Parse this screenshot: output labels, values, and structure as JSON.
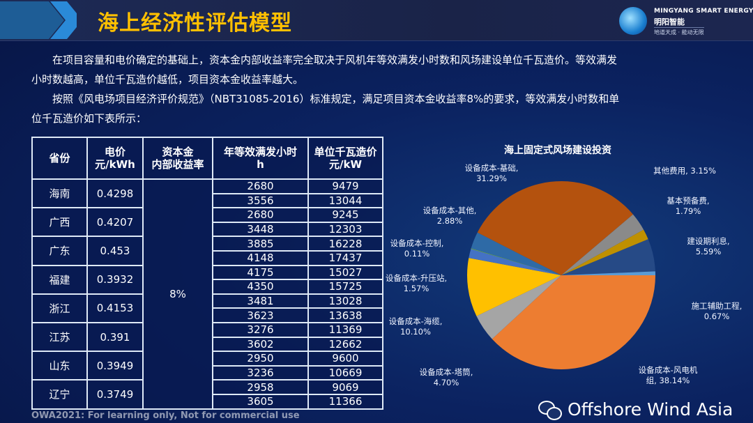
{
  "header": {
    "title": "海上经济性评估模型",
    "logo": {
      "en": "MINGYANG SMART ENERGY",
      "cn": "明阳智能",
      "slogan": "地道天成 · 能动无限"
    }
  },
  "intro": {
    "p1": "在项目容量和电价确定的基础上，资本金内部收益率完全取决于风机年等效满发小时数和风场建设单位千瓦造价。等效满发小时数越高，单位千瓦造价越低，项目资本金收益率越大。",
    "p2": "按照《风电场项目经济评价规范》（NBT31085-2016）标准规定，满足项目资本金收益率8%的要求，等效满发小时数和单位千瓦造价如下表所示："
  },
  "table": {
    "headers": [
      "省份",
      "电价\n元/kWh",
      "资本金\n内部收益率",
      "年等效满发小时\nh",
      "单位千瓦造价\n元/kW"
    ],
    "irr": "8%",
    "rows": [
      {
        "province": "海南",
        "price": "0.4298",
        "sub": [
          [
            "2680",
            "9479"
          ],
          [
            "3556",
            "13044"
          ]
        ]
      },
      {
        "province": "广西",
        "price": "0.4207",
        "sub": [
          [
            "2680",
            "9245"
          ],
          [
            "3448",
            "12303"
          ]
        ]
      },
      {
        "province": "广东",
        "price": "0.453",
        "sub": [
          [
            "3885",
            "16228"
          ],
          [
            "4148",
            "17437"
          ]
        ]
      },
      {
        "province": "福建",
        "price": "0.3932",
        "sub": [
          [
            "4175",
            "15027"
          ],
          [
            "4350",
            "15725"
          ]
        ]
      },
      {
        "province": "浙江",
        "price": "0.4153",
        "sub": [
          [
            "3481",
            "13028"
          ],
          [
            "3623",
            "13638"
          ]
        ]
      },
      {
        "province": "江苏",
        "price": "0.391",
        "sub": [
          [
            "3276",
            "11369"
          ],
          [
            "3602",
            "12662"
          ]
        ]
      },
      {
        "province": "山东",
        "price": "0.3949",
        "sub": [
          [
            "2950",
            "9600"
          ],
          [
            "3236",
            "10669"
          ]
        ]
      },
      {
        "province": "辽宁",
        "price": "0.3749",
        "sub": [
          [
            "2958",
            "9069"
          ],
          [
            "3605",
            "11366"
          ]
        ]
      }
    ]
  },
  "chart_data": {
    "type": "pie",
    "title": "海上固定式风场建设投资",
    "start": "3 o'clock, clockwise",
    "slices": [
      {
        "label": "设备成本-风电机组",
        "display": "设备成本-风电机\n组, 38.14%",
        "value": 38.14,
        "color": "#ed7d31"
      },
      {
        "label": "设备成本-塔筒",
        "display": "设备成本-塔筒,\n4.70%",
        "value": 4.7,
        "color": "#a5a5a5"
      },
      {
        "label": "设备成本-海缆",
        "display": "设备成本-海缆,\n10.10%",
        "value": 10.1,
        "color": "#ffc000"
      },
      {
        "label": "设备成本-升压站",
        "display": "设备成本-升压站,\n1.57%",
        "value": 1.57,
        "color": "#4472c4"
      },
      {
        "label": "设备成本-控制",
        "display": "设备成本-控制,\n0.11%",
        "value": 0.11,
        "color": "#70ad47"
      },
      {
        "label": "设备成本-其他",
        "display": "设备成本-其他,\n2.88%",
        "value": 2.88,
        "color": "#2e6aa6"
      },
      {
        "label": "设备成本-基础",
        "display": "设备成本-基础,\n31.29%",
        "value": 31.29,
        "color": "#b4520e"
      },
      {
        "label": "其他费用",
        "display": "其他费用, 3.15%",
        "value": 3.15,
        "color": "#8a8a8a"
      },
      {
        "label": "基本预备费",
        "display": "基本预备费,\n1.79%",
        "value": 1.79,
        "color": "#bf9000"
      },
      {
        "label": "建设期利息",
        "display": "建设期利息,\n5.59%",
        "value": 5.59,
        "color": "#264a86"
      },
      {
        "label": "施工辅助工程",
        "display": "施工辅助工程,\n0.67%",
        "value": 0.67,
        "color": "#5b9bd5"
      }
    ]
  },
  "watermark": "OWA2021: For learning only, Not for commercial use",
  "brand": "Offshore Wind Asia"
}
